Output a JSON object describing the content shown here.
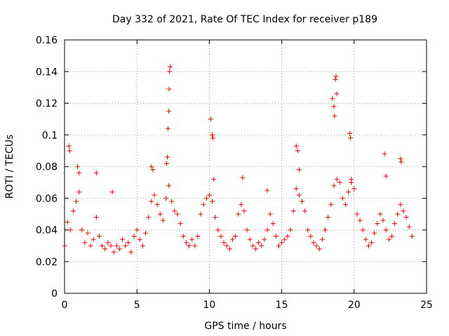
{
  "chart_data": {
    "type": "scatter",
    "title": "Day 332 of 2021, Rate Of TEC Index for receiver p189",
    "xlabel": "GPS time / hours",
    "ylabel": "ROTI / TECUs",
    "xlim": [
      0,
      25
    ],
    "ylim": [
      0,
      0.16
    ],
    "xticks": [
      0,
      5,
      10,
      15,
      20,
      25
    ],
    "xtick_labels": [
      "0",
      "5",
      "10",
      "15",
      "20",
      "25"
    ],
    "yticks": [
      0,
      0.02,
      0.04,
      0.06,
      0.08,
      0.1,
      0.12,
      0.14,
      0.16
    ],
    "ytick_labels": [
      "0",
      "0.02",
      "0.04",
      "0.06",
      "0.08",
      "0.1",
      "0.12",
      "0.14",
      "0.16"
    ],
    "grid": true,
    "marker": "plus",
    "marker_color": "#ff0000",
    "series": [
      {
        "name": "ROTI",
        "x": [
          0.0,
          0.2,
          0.4,
          0.6,
          0.8,
          1.0,
          1.2,
          1.4,
          1.6,
          1.8,
          2.0,
          2.2,
          2.4,
          2.6,
          2.8,
          3.0,
          3.2,
          3.4,
          3.6,
          3.8,
          4.0,
          4.2,
          4.4,
          4.6,
          4.8,
          5.0,
          5.2,
          5.4,
          5.6,
          5.8,
          6.0,
          6.2,
          6.4,
          6.6,
          6.8,
          7.0,
          7.2,
          7.4,
          7.6,
          7.8,
          8.0,
          8.2,
          8.4,
          8.6,
          8.8,
          9.0,
          9.2,
          9.4,
          9.6,
          9.8,
          10.0,
          10.2,
          10.4,
          10.6,
          10.8,
          11.0,
          11.2,
          11.4,
          11.6,
          11.8,
          12.0,
          12.2,
          12.4,
          12.6,
          12.8,
          13.0,
          13.2,
          13.4,
          13.6,
          13.8,
          14.0,
          14.2,
          14.4,
          14.6,
          14.8,
          15.0,
          15.2,
          15.4,
          15.6,
          15.8,
          16.0,
          16.2,
          16.4,
          16.6,
          16.8,
          17.0,
          17.2,
          17.4,
          17.6,
          17.8,
          18.0,
          18.2,
          18.4,
          18.6,
          18.8,
          19.0,
          19.2,
          19.4,
          19.6,
          19.8,
          20.0,
          20.2,
          20.4,
          20.6,
          20.8,
          21.0,
          21.2,
          21.4,
          21.6,
          21.8,
          22.0,
          22.2,
          22.4,
          22.6,
          22.8,
          23.0,
          23.2,
          23.4,
          23.6,
          23.8,
          24.0,
          0.3,
          0.35,
          0.9,
          1.0,
          2.2,
          3.3,
          6.0,
          6.1,
          7.05,
          7.1,
          7.15,
          7.2,
          7.22,
          7.25,
          7.3,
          10.1,
          10.2,
          10.25,
          10.3,
          12.3,
          14.0,
          16.0,
          16.1,
          16.2,
          18.5,
          18.6,
          18.7,
          18.75,
          18.8,
          18.65,
          19.7,
          19.75,
          19.8,
          22.1,
          22.2,
          23.2,
          23.25
        ],
        "y": [
          0.03,
          0.045,
          0.04,
          0.052,
          0.058,
          0.064,
          0.04,
          0.032,
          0.038,
          0.03,
          0.034,
          0.048,
          0.036,
          0.03,
          0.028,
          0.032,
          0.03,
          0.026,
          0.03,
          0.028,
          0.034,
          0.03,
          0.032,
          0.026,
          0.036,
          0.04,
          0.034,
          0.03,
          0.038,
          0.048,
          0.058,
          0.062,
          0.056,
          0.05,
          0.046,
          0.06,
          0.068,
          0.058,
          0.052,
          0.05,
          0.044,
          0.036,
          0.032,
          0.03,
          0.034,
          0.03,
          0.036,
          0.05,
          0.056,
          0.06,
          0.062,
          0.058,
          0.048,
          0.04,
          0.036,
          0.032,
          0.03,
          0.028,
          0.034,
          0.036,
          0.05,
          0.056,
          0.052,
          0.04,
          0.034,
          0.03,
          0.028,
          0.032,
          0.03,
          0.034,
          0.04,
          0.05,
          0.044,
          0.036,
          0.03,
          0.032,
          0.034,
          0.036,
          0.04,
          0.052,
          0.066,
          0.062,
          0.058,
          0.052,
          0.04,
          0.036,
          0.032,
          0.03,
          0.028,
          0.034,
          0.04,
          0.048,
          0.056,
          0.068,
          0.072,
          0.07,
          0.06,
          0.056,
          0.064,
          0.07,
          0.066,
          0.05,
          0.046,
          0.04,
          0.034,
          0.03,
          0.032,
          0.038,
          0.044,
          0.05,
          0.046,
          0.04,
          0.034,
          0.036,
          0.044,
          0.05,
          0.056,
          0.052,
          0.048,
          0.042,
          0.036,
          0.093,
          0.09,
          0.08,
          0.076,
          0.076,
          0.064,
          0.08,
          0.078,
          0.082,
          0.086,
          0.104,
          0.115,
          0.129,
          0.14,
          0.143,
          0.11,
          0.1,
          0.098,
          0.072,
          0.073,
          0.065,
          0.093,
          0.09,
          0.078,
          0.123,
          0.118,
          0.135,
          0.137,
          0.126,
          0.112,
          0.101,
          0.098,
          0.072,
          0.088,
          0.074,
          0.085,
          0.083
        ]
      }
    ]
  }
}
